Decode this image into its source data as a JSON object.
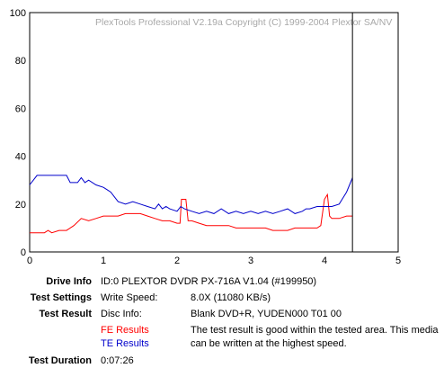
{
  "chart_data": {
    "type": "line",
    "copyright": "PlexTools Professional V2.19a Copyright (C) 1999-2004 Plextor SA/NV",
    "xlim": [
      0,
      5
    ],
    "ylim": [
      0,
      100
    ],
    "x_ticks": [
      "0",
      "1",
      "2",
      "3",
      "4",
      "5"
    ],
    "y_ticks": [
      "0",
      "20",
      "40",
      "60",
      "80",
      "100"
    ],
    "grid": true,
    "marker_x": 4.38,
    "series": [
      {
        "name": "FE Results",
        "color": "#ff0000",
        "points": [
          [
            0,
            8
          ],
          [
            0.2,
            8
          ],
          [
            0.25,
            9
          ],
          [
            0.3,
            8
          ],
          [
            0.4,
            9
          ],
          [
            0.5,
            9
          ],
          [
            0.6,
            11
          ],
          [
            0.7,
            14
          ],
          [
            0.8,
            13
          ],
          [
            0.9,
            14
          ],
          [
            1.0,
            15
          ],
          [
            1.1,
            15
          ],
          [
            1.2,
            15
          ],
          [
            1.3,
            16
          ],
          [
            1.4,
            16
          ],
          [
            1.5,
            16
          ],
          [
            1.6,
            15
          ],
          [
            1.7,
            14
          ],
          [
            1.8,
            13
          ],
          [
            1.9,
            13
          ],
          [
            2.0,
            12
          ],
          [
            2.04,
            12
          ],
          [
            2.06,
            22
          ],
          [
            2.12,
            22
          ],
          [
            2.15,
            13
          ],
          [
            2.2,
            13
          ],
          [
            2.3,
            12
          ],
          [
            2.4,
            11
          ],
          [
            2.5,
            11
          ],
          [
            2.6,
            11
          ],
          [
            2.7,
            11
          ],
          [
            2.8,
            10
          ],
          [
            3.0,
            10
          ],
          [
            3.2,
            10
          ],
          [
            3.3,
            9
          ],
          [
            3.5,
            9
          ],
          [
            3.6,
            10
          ],
          [
            3.8,
            10
          ],
          [
            3.9,
            10
          ],
          [
            3.95,
            11
          ],
          [
            4.0,
            22
          ],
          [
            4.04,
            24
          ],
          [
            4.07,
            15
          ],
          [
            4.1,
            14
          ],
          [
            4.2,
            14
          ],
          [
            4.3,
            15
          ],
          [
            4.38,
            15
          ]
        ]
      },
      {
        "name": "TE Results",
        "color": "#0000cc",
        "points": [
          [
            0,
            28
          ],
          [
            0.05,
            30
          ],
          [
            0.1,
            32
          ],
          [
            0.2,
            32
          ],
          [
            0.3,
            32
          ],
          [
            0.4,
            32
          ],
          [
            0.5,
            32
          ],
          [
            0.55,
            29
          ],
          [
            0.65,
            29
          ],
          [
            0.7,
            31
          ],
          [
            0.75,
            29
          ],
          [
            0.8,
            30
          ],
          [
            0.9,
            28
          ],
          [
            1.0,
            27
          ],
          [
            1.05,
            26
          ],
          [
            1.1,
            25
          ],
          [
            1.15,
            23
          ],
          [
            1.2,
            21
          ],
          [
            1.3,
            20
          ],
          [
            1.4,
            21
          ],
          [
            1.5,
            20
          ],
          [
            1.6,
            19
          ],
          [
            1.7,
            18
          ],
          [
            1.75,
            20
          ],
          [
            1.8,
            18
          ],
          [
            1.85,
            19
          ],
          [
            1.9,
            18
          ],
          [
            2.0,
            17
          ],
          [
            2.05,
            19
          ],
          [
            2.1,
            18
          ],
          [
            2.2,
            17
          ],
          [
            2.3,
            16
          ],
          [
            2.4,
            17
          ],
          [
            2.5,
            16
          ],
          [
            2.6,
            18
          ],
          [
            2.7,
            16
          ],
          [
            2.8,
            17
          ],
          [
            2.9,
            16
          ],
          [
            3.0,
            17
          ],
          [
            3.1,
            16
          ],
          [
            3.2,
            17
          ],
          [
            3.3,
            16
          ],
          [
            3.4,
            17
          ],
          [
            3.5,
            18
          ],
          [
            3.6,
            16
          ],
          [
            3.7,
            17
          ],
          [
            3.75,
            18
          ],
          [
            3.8,
            18
          ],
          [
            3.9,
            19
          ],
          [
            4.0,
            19
          ],
          [
            4.1,
            19
          ],
          [
            4.2,
            20
          ],
          [
            4.3,
            25
          ],
          [
            4.38,
            31
          ]
        ]
      }
    ]
  },
  "info": {
    "drive_label": "Drive Info",
    "drive_value": "ID:0 PLEXTOR DVDR PX-716A V1.04 (#199950)",
    "settings_label": "Test Settings",
    "write_speed_label": "Write Speed:",
    "write_speed_value": "8.0X (11080 KB/s)",
    "result_label": "Test Result",
    "disc_info_label": "Disc Info:",
    "disc_info_value": "Blank DVD+R, YUDEN000 T01 00",
    "fe_results": "FE Results",
    "te_results": "TE Results",
    "result_text": "The test result is good within the tested area. This media can be written at the highest speed.",
    "duration_label": "Test Duration",
    "duration_value": "0:07:26"
  }
}
